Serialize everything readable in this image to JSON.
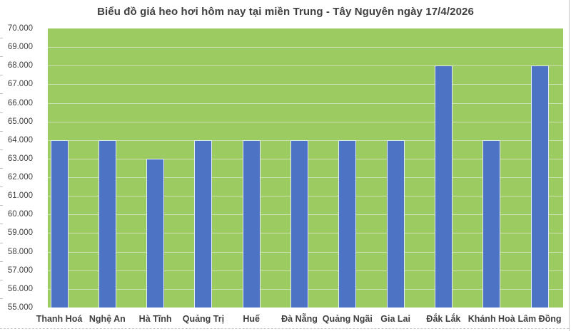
{
  "chart_data": {
    "type": "bar",
    "title": "Biểu đồ giá heo hơi hôm nay tại miền Trung - Tây Nguyên ngày 17/4/2026",
    "categories": [
      "Thanh Hoá",
      "Nghệ An",
      "Hà Tĩnh",
      "Quảng Trị",
      "Huế",
      "Đà Nẵng",
      "Quảng Ngãi",
      "Gia Lai",
      "Đắk Lắk",
      "Khánh Hoà",
      "Lâm Đồng"
    ],
    "values": [
      64000,
      64000,
      63000,
      64000,
      64000,
      64000,
      64000,
      64000,
      68000,
      64000,
      68000
    ],
    "xlabel": "",
    "ylabel": "",
    "ylim": [
      55000,
      70000
    ],
    "ytick_step": 1000,
    "ytick_labels": [
      "70.000",
      "69.000",
      "68.000",
      "67.000",
      "66.000",
      "65.000",
      "64.000",
      "63.000",
      "62.000",
      "61.000",
      "60.000",
      "59.000",
      "58.000",
      "57.000",
      "56.000",
      "55.000"
    ],
    "grid": "horizontal major gridlines on green plot background, minor tick dashes at far left edge",
    "legend": "none",
    "colors": {
      "page_background": "#FFFFFF",
      "plot_background": "#9CCB62",
      "bar_fill": "#4C73C4",
      "bar_border": "#E4ECF7",
      "gridline": "#CDE2AE",
      "text": "#3F3F3F",
      "frame_border": "#C9C9C9"
    }
  }
}
